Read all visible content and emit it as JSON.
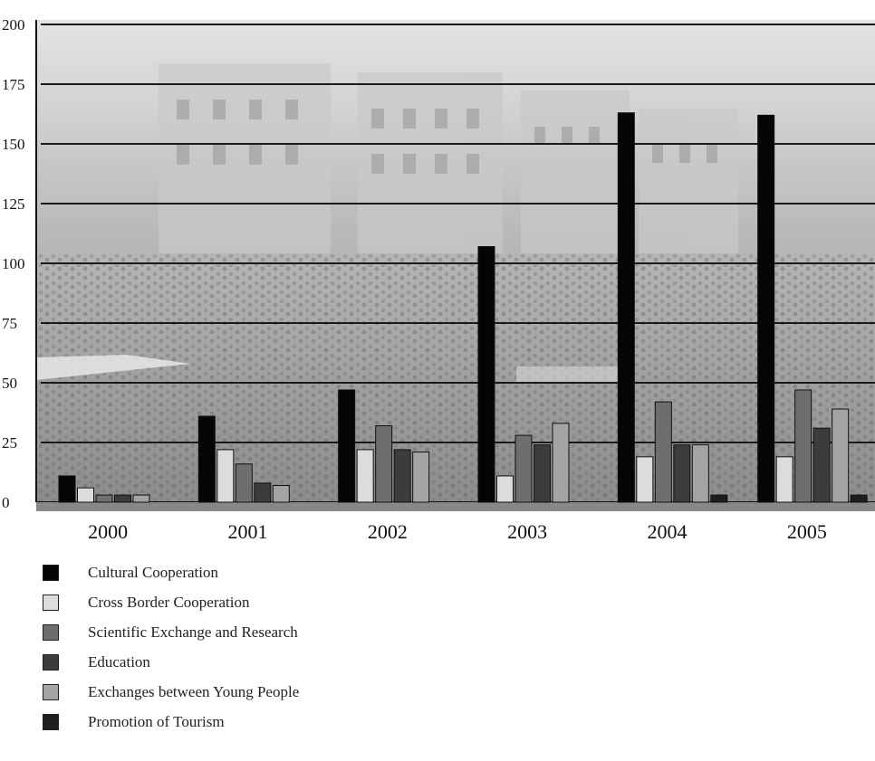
{
  "chart_data": {
    "type": "bar",
    "categories": [
      "2000",
      "2001",
      "2002",
      "2003",
      "2004",
      "2005"
    ],
    "ylim": [
      0,
      200
    ],
    "yticks": [
      0,
      25,
      50,
      75,
      100,
      125,
      150,
      175,
      200
    ],
    "grid": true,
    "legend_position": "bottom",
    "series": [
      {
        "name": "Cultural Cooperation",
        "color": "#050505",
        "values": [
          11,
          36,
          47,
          107,
          163,
          162
        ]
      },
      {
        "name": "Cross Border Cooperation",
        "color": "#dcdcdc",
        "values": [
          6,
          22,
          22,
          11,
          19,
          19
        ]
      },
      {
        "name": "Scientific Exchange and Research",
        "color": "#6e6e6e",
        "values": [
          3,
          16,
          32,
          28,
          42,
          47
        ]
      },
      {
        "name": "Education",
        "color": "#3c3c3c",
        "values": [
          3,
          8,
          22,
          24,
          24,
          31
        ]
      },
      {
        "name": "Exchanges between Young People",
        "color": "#a4a4a4",
        "values": [
          3,
          7,
          21,
          33,
          24,
          39
        ]
      },
      {
        "name": "Promotion of Tourism",
        "color": "#1e1e1e",
        "values": [
          0,
          0,
          0,
          0,
          3,
          3
        ]
      }
    ]
  }
}
